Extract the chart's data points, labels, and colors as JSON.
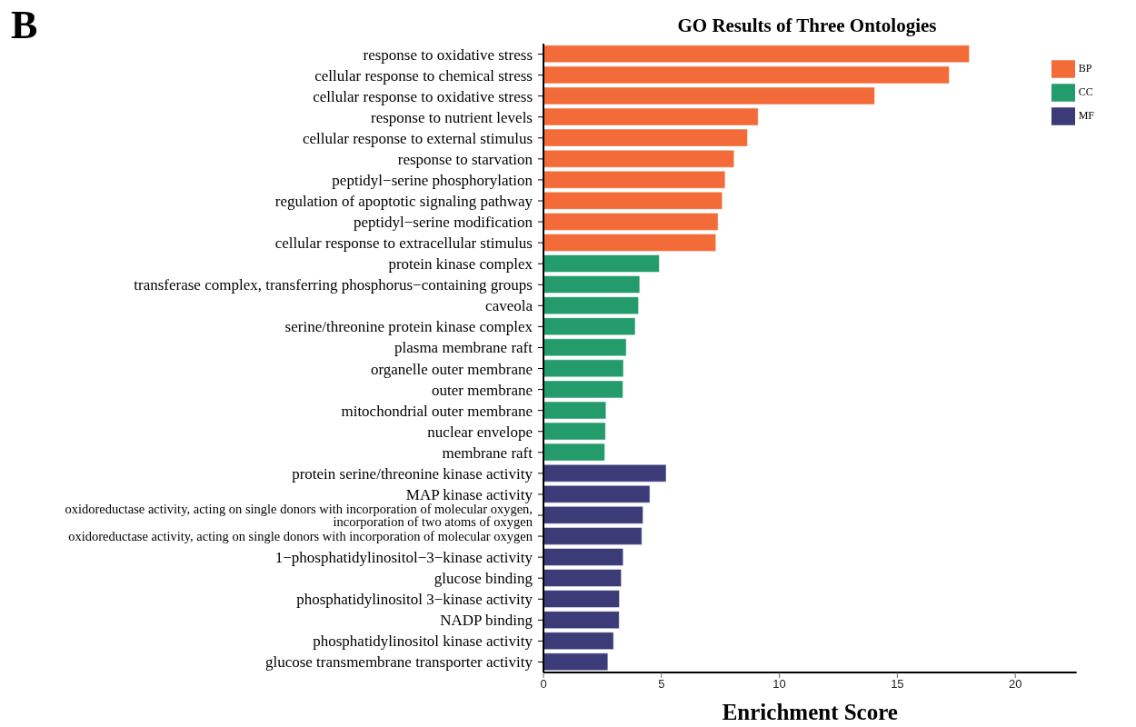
{
  "chart_data": {
    "type": "bar",
    "orientation": "horizontal",
    "stacked": true,
    "title": "GO Results of Three Ontologies",
    "xlabel": "Enrichment Score",
    "annotations": [
      "B"
    ],
    "categories": [
      "response to oxidative stress",
      "cellular response to chemical stress",
      "cellular response to oxidative stress",
      "response to nutrient levels",
      "cellular response to external stimulus",
      "response to starvation",
      "peptidyl−serine phosphorylation",
      "regulation of apoptotic signaling pathway",
      "peptidyl−serine modification",
      "cellular response to extracellular stimulus",
      "protein kinase complex",
      "transferase complex, transferring phosphorus−containing groups",
      "caveola",
      "serine/threonine protein kinase complex",
      "plasma membrane raft",
      "organelle outer membrane",
      "outer membrane",
      "mitochondrial outer membrane",
      "nuclear envelope",
      "membrane raft",
      "protein serine/threonine kinase activity",
      "MAP kinase activity",
      "oxidoreductase activity, acting on single donors with incorporation of molecular oxygen, incorporation of two atoms of oxygen",
      "oxidoreductase activity, acting on single donors with incorporation of molecular oxygen",
      "1−phosphatidylinositol−3−kinase activity",
      "glucose binding",
      "phosphatidylinositol 3−kinase activity",
      "NADP binding",
      "phosphatidylinositol kinase activity",
      "glucose transmembrane transporter activity"
    ],
    "series": [
      {
        "name": "BP",
        "color": "#f26b38",
        "values": [
          18.05,
          17.2,
          14.04,
          9.1,
          8.65,
          8.08,
          7.7,
          7.58,
          7.4,
          7.31,
          null,
          null,
          null,
          null,
          null,
          null,
          null,
          null,
          null,
          null,
          null,
          null,
          null,
          null,
          null,
          null,
          null,
          null,
          null,
          null
        ]
      },
      {
        "name": "CC",
        "color": "#239b6b",
        "values": [
          null,
          null,
          null,
          null,
          null,
          null,
          null,
          null,
          null,
          null,
          4.91,
          4.08,
          4.03,
          3.89,
          3.51,
          3.39,
          3.37,
          2.65,
          2.63,
          2.6,
          null,
          null,
          null,
          null,
          null,
          null,
          null,
          null,
          null,
          null
        ]
      },
      {
        "name": "MF",
        "color": "#3b3b78",
        "values": [
          null,
          null,
          null,
          null,
          null,
          null,
          null,
          null,
          null,
          null,
          null,
          null,
          null,
          null,
          null,
          null,
          null,
          null,
          null,
          null,
          5.2,
          4.51,
          4.22,
          4.17,
          3.38,
          3.3,
          3.22,
          3.21,
          2.97,
          2.73
        ]
      }
    ],
    "xlim": [
      0,
      22.6
    ],
    "xticks": [
      0,
      5,
      10,
      15,
      20
    ],
    "legend": "top right"
  }
}
